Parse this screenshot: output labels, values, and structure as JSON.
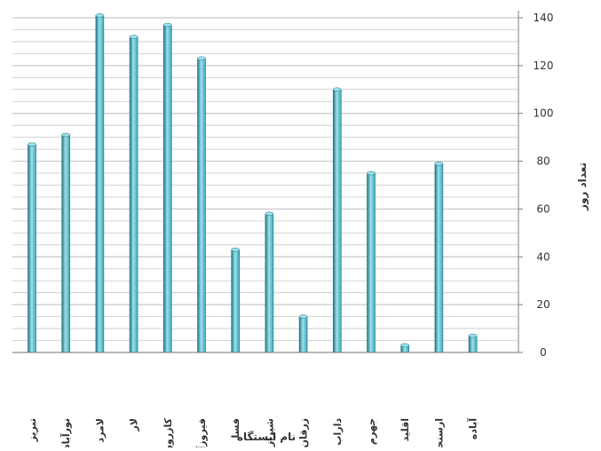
{
  "chart_data": {
    "type": "bar",
    "title": "",
    "xlabel": "نام ایستگاه",
    "ylabel": "تعداد روز",
    "ylim": [
      0,
      140
    ],
    "yticks": [
      0,
      20,
      40,
      60,
      80,
      100,
      120,
      140
    ],
    "y_axis_position": "right",
    "grid": true,
    "legend": "none",
    "categories": [
      "تبریز",
      "نورآباد",
      "لامرد",
      "لار",
      "کازرون",
      "فیروزآباد",
      "فسا",
      "شیراز",
      "زرقان",
      "داراب",
      "جهرم",
      "اقلید",
      "ارسنجان",
      "آباده"
    ],
    "values": [
      87,
      91,
      141,
      132,
      137,
      123,
      43,
      58,
      15,
      110,
      75,
      3,
      79,
      7
    ],
    "colors": {
      "bar": "#3aa8b8",
      "bar_light": "#9ee0ea",
      "bar_dark": "#1e7584",
      "grid": "#c8c8c8",
      "axis": "#7f7f7f"
    }
  }
}
